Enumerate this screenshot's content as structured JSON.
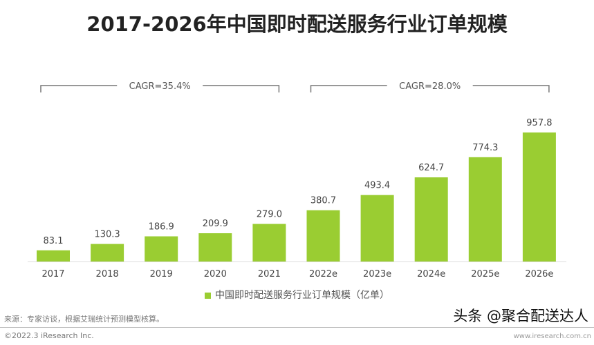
{
  "chart_data": {
    "type": "bar",
    "title": "2017-2026年中国即时配送服务行业订单规模",
    "categories": [
      "2017",
      "2018",
      "2019",
      "2020",
      "2021",
      "2022e",
      "2023e",
      "2024e",
      "2025e",
      "2026e"
    ],
    "series": [
      {
        "name": "中国即时配送服务行业订单规模（亿单）",
        "values": [
          83.1,
          130.3,
          186.9,
          209.9,
          279.0,
          380.7,
          493.4,
          624.7,
          774.3,
          957.8
        ],
        "color": "#9acd32"
      }
    ],
    "data_labels": [
      "83.1",
      "130.3",
      "186.9",
      "209.9",
      "279.0",
      "380.7",
      "493.4",
      "624.7",
      "774.3",
      "957.8"
    ],
    "annotations": [
      {
        "text": "CAGR=35.4%",
        "from": "2017",
        "to": "2021"
      },
      {
        "text": "CAGR=28.0%",
        "from": "2022e",
        "to": "2026e"
      }
    ],
    "ylim": [
      0,
      1000
    ],
    "grid": false,
    "legend": "bottom"
  },
  "footer": {
    "source": "来源：专家访谈，根据艾瑞统计预测模型核算。",
    "copyright": "©2022.3 iResearch Inc.",
    "site": "www.iresearch.com.cn",
    "watermark": "头条 @聚合配送达人"
  }
}
